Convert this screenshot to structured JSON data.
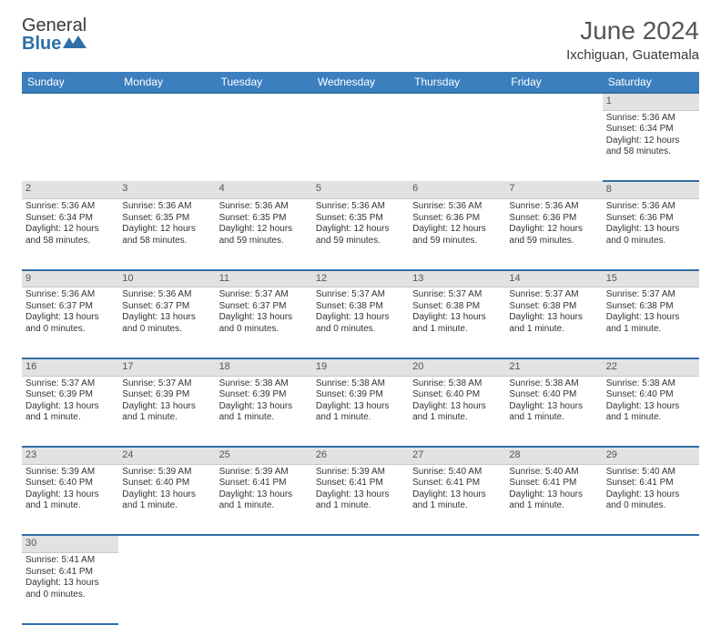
{
  "brand": {
    "text1": "General",
    "text2": "Blue"
  },
  "title": "June 2024",
  "location": "Ixchiguan, Guatemala",
  "colors": {
    "header_bg": "#3b7fbf",
    "header_border": "#2f6fa8",
    "daynum_bg": "#e2e2e2",
    "text": "#333333"
  },
  "day_headers": [
    "Sunday",
    "Monday",
    "Tuesday",
    "Wednesday",
    "Thursday",
    "Friday",
    "Saturday"
  ],
  "weeks": [
    {
      "nums": [
        "",
        "",
        "",
        "",
        "",
        "",
        "1"
      ],
      "cells": [
        "",
        "",
        "",
        "",
        "",
        "",
        "Sunrise: 5:36 AM\nSunset: 6:34 PM\nDaylight: 12 hours and 58 minutes."
      ]
    },
    {
      "nums": [
        "2",
        "3",
        "4",
        "5",
        "6",
        "7",
        "8"
      ],
      "cells": [
        "Sunrise: 5:36 AM\nSunset: 6:34 PM\nDaylight: 12 hours and 58 minutes.",
        "Sunrise: 5:36 AM\nSunset: 6:35 PM\nDaylight: 12 hours and 58 minutes.",
        "Sunrise: 5:36 AM\nSunset: 6:35 PM\nDaylight: 12 hours and 59 minutes.",
        "Sunrise: 5:36 AM\nSunset: 6:35 PM\nDaylight: 12 hours and 59 minutes.",
        "Sunrise: 5:36 AM\nSunset: 6:36 PM\nDaylight: 12 hours and 59 minutes.",
        "Sunrise: 5:36 AM\nSunset: 6:36 PM\nDaylight: 12 hours and 59 minutes.",
        "Sunrise: 5:36 AM\nSunset: 6:36 PM\nDaylight: 13 hours and 0 minutes."
      ]
    },
    {
      "nums": [
        "9",
        "10",
        "11",
        "12",
        "13",
        "14",
        "15"
      ],
      "cells": [
        "Sunrise: 5:36 AM\nSunset: 6:37 PM\nDaylight: 13 hours and 0 minutes.",
        "Sunrise: 5:36 AM\nSunset: 6:37 PM\nDaylight: 13 hours and 0 minutes.",
        "Sunrise: 5:37 AM\nSunset: 6:37 PM\nDaylight: 13 hours and 0 minutes.",
        "Sunrise: 5:37 AM\nSunset: 6:38 PM\nDaylight: 13 hours and 0 minutes.",
        "Sunrise: 5:37 AM\nSunset: 6:38 PM\nDaylight: 13 hours and 1 minute.",
        "Sunrise: 5:37 AM\nSunset: 6:38 PM\nDaylight: 13 hours and 1 minute.",
        "Sunrise: 5:37 AM\nSunset: 6:38 PM\nDaylight: 13 hours and 1 minute."
      ]
    },
    {
      "nums": [
        "16",
        "17",
        "18",
        "19",
        "20",
        "21",
        "22"
      ],
      "cells": [
        "Sunrise: 5:37 AM\nSunset: 6:39 PM\nDaylight: 13 hours and 1 minute.",
        "Sunrise: 5:37 AM\nSunset: 6:39 PM\nDaylight: 13 hours and 1 minute.",
        "Sunrise: 5:38 AM\nSunset: 6:39 PM\nDaylight: 13 hours and 1 minute.",
        "Sunrise: 5:38 AM\nSunset: 6:39 PM\nDaylight: 13 hours and 1 minute.",
        "Sunrise: 5:38 AM\nSunset: 6:40 PM\nDaylight: 13 hours and 1 minute.",
        "Sunrise: 5:38 AM\nSunset: 6:40 PM\nDaylight: 13 hours and 1 minute.",
        "Sunrise: 5:38 AM\nSunset: 6:40 PM\nDaylight: 13 hours and 1 minute."
      ]
    },
    {
      "nums": [
        "23",
        "24",
        "25",
        "26",
        "27",
        "28",
        "29"
      ],
      "cells": [
        "Sunrise: 5:39 AM\nSunset: 6:40 PM\nDaylight: 13 hours and 1 minute.",
        "Sunrise: 5:39 AM\nSunset: 6:40 PM\nDaylight: 13 hours and 1 minute.",
        "Sunrise: 5:39 AM\nSunset: 6:41 PM\nDaylight: 13 hours and 1 minute.",
        "Sunrise: 5:39 AM\nSunset: 6:41 PM\nDaylight: 13 hours and 1 minute.",
        "Sunrise: 5:40 AM\nSunset: 6:41 PM\nDaylight: 13 hours and 1 minute.",
        "Sunrise: 5:40 AM\nSunset: 6:41 PM\nDaylight: 13 hours and 1 minute.",
        "Sunrise: 5:40 AM\nSunset: 6:41 PM\nDaylight: 13 hours and 0 minutes."
      ]
    },
    {
      "nums": [
        "30",
        "",
        "",
        "",
        "",
        "",
        ""
      ],
      "cells": [
        "Sunrise: 5:41 AM\nSunset: 6:41 PM\nDaylight: 13 hours and 0 minutes.",
        "",
        "",
        "",
        "",
        "",
        ""
      ]
    }
  ]
}
